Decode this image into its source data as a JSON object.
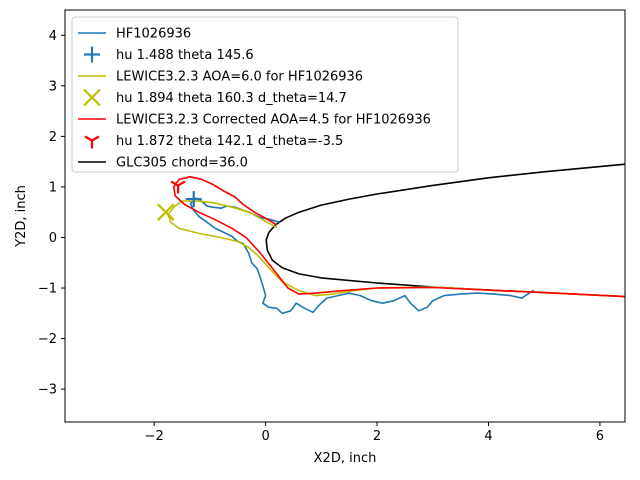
{
  "chart_data": {
    "type": "line",
    "title": "",
    "xlabel": "X2D, inch",
    "ylabel": "Y2D, inch",
    "xlim": [
      -3.6,
      6.45
    ],
    "ylim": [
      -3.65,
      4.5
    ],
    "xticks": [
      -2,
      0,
      2,
      4,
      6
    ],
    "yticks": [
      -3,
      -2,
      -1,
      0,
      1,
      2,
      3,
      4
    ],
    "grid": false,
    "legend_position": "top-left",
    "colors": {
      "blue": "#1f77b4",
      "yellow": "#bfbf00",
      "red": "#ff0000",
      "black": "#000000"
    },
    "legend": [
      {
        "label": "HF1026936",
        "kind": "line",
        "color": "#1f77b4"
      },
      {
        "label": "hu 1.488 theta 145.6",
        "kind": "marker-plus",
        "color": "#1f77b4"
      },
      {
        "label": "LEWICE3.2.3 AOA=6.0 for HF1026936",
        "kind": "line",
        "color": "#bfbf00"
      },
      {
        "label": "hu 1.894 theta 160.3 d_theta=14.7",
        "kind": "marker-x",
        "color": "#bfbf00"
      },
      {
        "label": "LEWICE3.2.3 Corrected AOA=4.5 for HF1026936",
        "kind": "line",
        "color": "#ff0000"
      },
      {
        "label": "hu 1.872 theta 142.1 d_theta=-3.5",
        "kind": "marker-tri",
        "color": "#ff0000"
      },
      {
        "label": "GLC305 chord=36.0",
        "kind": "line",
        "color": "#000000"
      }
    ],
    "series": [
      {
        "name": "GLC305 chord=36.0",
        "color": "#000000",
        "points": [
          [
            6.45,
            1.45
          ],
          [
            5.0,
            1.3
          ],
          [
            4.0,
            1.18
          ],
          [
            3.0,
            1.03
          ],
          [
            2.0,
            0.86
          ],
          [
            1.5,
            0.76
          ],
          [
            1.0,
            0.64
          ],
          [
            0.6,
            0.5
          ],
          [
            0.35,
            0.38
          ],
          [
            0.18,
            0.25
          ],
          [
            0.06,
            0.1
          ],
          [
            0.01,
            -0.05
          ],
          [
            0.03,
            -0.25
          ],
          [
            0.12,
            -0.45
          ],
          [
            0.3,
            -0.6
          ],
          [
            0.6,
            -0.72
          ],
          [
            1.0,
            -0.8
          ],
          [
            2.0,
            -0.9
          ],
          [
            3.0,
            -0.98
          ],
          [
            4.0,
            -1.04
          ],
          [
            5.0,
            -1.09
          ],
          [
            6.45,
            -1.17
          ]
        ]
      },
      {
        "name": "HF1026936",
        "color": "#1f77b4",
        "points": [
          [
            0.25,
            0.3
          ],
          [
            0.1,
            0.35
          ],
          [
            -0.1,
            0.4
          ],
          [
            -0.3,
            0.5
          ],
          [
            -0.55,
            0.6
          ],
          [
            -0.7,
            0.62
          ],
          [
            -0.8,
            0.58
          ],
          [
            -0.95,
            0.6
          ],
          [
            -1.05,
            0.62
          ],
          [
            -1.15,
            0.72
          ],
          [
            -1.25,
            0.78
          ],
          [
            -1.3,
            0.72
          ],
          [
            -1.35,
            0.68
          ],
          [
            -1.3,
            0.55
          ],
          [
            -1.2,
            0.42
          ],
          [
            -1.05,
            0.3
          ],
          [
            -0.9,
            0.18
          ],
          [
            -0.75,
            0.1
          ],
          [
            -0.6,
            0.02
          ],
          [
            -0.5,
            -0.08
          ],
          [
            -0.4,
            -0.12
          ],
          [
            -0.35,
            -0.22
          ],
          [
            -0.3,
            -0.32
          ],
          [
            -0.25,
            -0.5
          ],
          [
            -0.15,
            -0.62
          ],
          [
            -0.1,
            -0.78
          ],
          [
            -0.05,
            -0.95
          ],
          [
            0.0,
            -1.15
          ],
          [
            -0.05,
            -1.3
          ],
          [
            0.05,
            -1.38
          ],
          [
            0.2,
            -1.4
          ],
          [
            0.3,
            -1.5
          ],
          [
            0.45,
            -1.45
          ],
          [
            0.55,
            -1.3
          ],
          [
            0.7,
            -1.4
          ],
          [
            0.85,
            -1.48
          ],
          [
            0.95,
            -1.35
          ],
          [
            1.1,
            -1.2
          ],
          [
            1.3,
            -1.15
          ],
          [
            1.5,
            -1.1
          ],
          [
            1.7,
            -1.15
          ],
          [
            1.9,
            -1.25
          ],
          [
            2.1,
            -1.3
          ],
          [
            2.3,
            -1.25
          ],
          [
            2.5,
            -1.15
          ],
          [
            2.6,
            -1.3
          ],
          [
            2.75,
            -1.45
          ],
          [
            2.9,
            -1.38
          ],
          [
            3.0,
            -1.25
          ],
          [
            3.2,
            -1.15
          ],
          [
            3.5,
            -1.12
          ],
          [
            3.8,
            -1.1
          ],
          [
            4.1,
            -1.12
          ],
          [
            4.4,
            -1.15
          ],
          [
            4.6,
            -1.2
          ],
          [
            4.8,
            -1.05
          ],
          [
            4.8,
            -1.08
          ]
        ]
      },
      {
        "name": "LEWICE3.2.3 AOA=6.0 for HF1026936",
        "color": "#bfbf00",
        "points": [
          [
            0.2,
            0.2
          ],
          [
            0.0,
            0.32
          ],
          [
            -0.3,
            0.5
          ],
          [
            -0.6,
            0.6
          ],
          [
            -0.9,
            0.68
          ],
          [
            -1.2,
            0.72
          ],
          [
            -1.5,
            0.72
          ],
          [
            -1.65,
            0.6
          ],
          [
            -1.75,
            0.45
          ],
          [
            -1.7,
            0.3
          ],
          [
            -1.55,
            0.18
          ],
          [
            -1.2,
            0.08
          ],
          [
            -0.8,
            0.0
          ],
          [
            -0.5,
            -0.08
          ],
          [
            -0.3,
            -0.2
          ],
          [
            -0.1,
            -0.4
          ],
          [
            0.1,
            -0.65
          ],
          [
            0.3,
            -0.88
          ],
          [
            0.6,
            -1.05
          ],
          [
            0.9,
            -1.15
          ],
          [
            1.2,
            -1.12
          ],
          [
            1.6,
            -1.05
          ],
          [
            2.0,
            -1.0
          ],
          [
            3.0,
            -0.98
          ],
          [
            4.0,
            -1.04
          ],
          [
            5.0,
            -1.09
          ],
          [
            6.45,
            -1.17
          ]
        ]
      },
      {
        "name": "LEWICE3.2.3 Corrected AOA=4.5 for HF1026936",
        "color": "#ff0000",
        "points": [
          [
            0.2,
            0.25
          ],
          [
            0.05,
            0.35
          ],
          [
            -0.2,
            0.5
          ],
          [
            -0.4,
            0.65
          ],
          [
            -0.55,
            0.8
          ],
          [
            -0.75,
            0.92
          ],
          [
            -0.95,
            1.05
          ],
          [
            -1.15,
            1.15
          ],
          [
            -1.35,
            1.2
          ],
          [
            -1.55,
            1.15
          ],
          [
            -1.65,
            1.0
          ],
          [
            -1.62,
            0.82
          ],
          [
            -1.45,
            0.65
          ],
          [
            -1.2,
            0.5
          ],
          [
            -0.9,
            0.35
          ],
          [
            -0.6,
            0.18
          ],
          [
            -0.35,
            0.0
          ],
          [
            -0.1,
            -0.3
          ],
          [
            0.15,
            -0.65
          ],
          [
            0.4,
            -1.0
          ],
          [
            0.6,
            -1.12
          ],
          [
            0.9,
            -1.1
          ],
          [
            1.4,
            -1.05
          ],
          [
            2.0,
            -1.0
          ],
          [
            3.0,
            -0.99
          ],
          [
            4.0,
            -1.04
          ],
          [
            5.0,
            -1.09
          ],
          [
            6.45,
            -1.17
          ]
        ]
      }
    ],
    "markers": [
      {
        "label": "hu 1.488 theta 145.6",
        "kind": "plus",
        "color": "#1f77b4",
        "x": -1.29,
        "y": 0.76
      },
      {
        "label": "hu 1.894 theta 160.3 d_theta=14.7",
        "kind": "x",
        "color": "#bfbf00",
        "x": -1.79,
        "y": 0.5
      },
      {
        "label": "hu 1.872 theta 142.1 d_theta=-3.5",
        "kind": "tri",
        "color": "#ff0000",
        "x": -1.57,
        "y": 1.03
      }
    ]
  }
}
